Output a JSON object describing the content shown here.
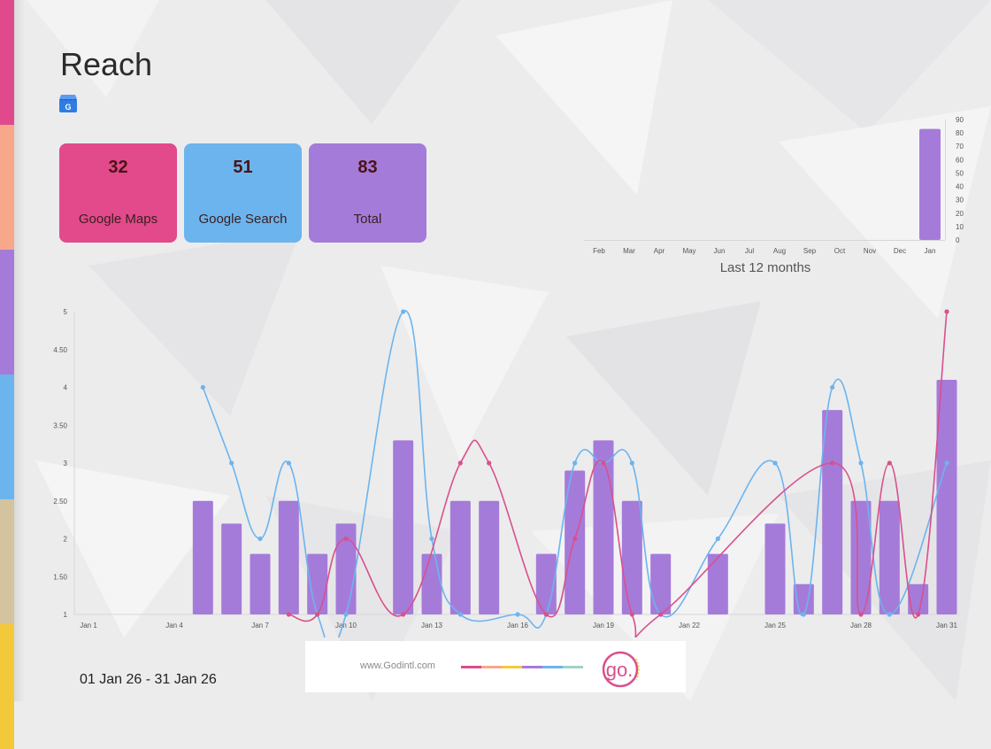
{
  "page": {
    "title": "Reach",
    "date_range": "01 Jan 26  -  31 Jan 26",
    "footer_url": "www.Godintl.com",
    "logo_text": "go."
  },
  "strip_colors": [
    "#e04a8c",
    "#f8a88a",
    "#a57bd9",
    "#6cb4ee",
    "#d4c39f",
    "#f3c93a"
  ],
  "cards": [
    {
      "value": "32",
      "label": "Google Maps",
      "color": "#e24a8b"
    },
    {
      "value": "51",
      "label": "Google Search",
      "color": "#6cb4ee"
    },
    {
      "value": "83",
      "label": "Total",
      "color": "#a57bd9"
    }
  ],
  "chart_data": [
    {
      "type": "bar",
      "title": "Last 12 months",
      "categories": [
        "Feb",
        "Mar",
        "Apr",
        "May",
        "Jun",
        "Jul",
        "Aug",
        "Sep",
        "Oct",
        "Nov",
        "Dec",
        "Jan"
      ],
      "values": [
        0,
        0,
        0,
        0,
        0,
        0,
        0,
        0,
        0,
        0,
        0,
        83
      ],
      "ylim": [
        0,
        90
      ],
      "yticks": [
        "0",
        "10",
        "20",
        "30",
        "40",
        "50",
        "60",
        "70",
        "80",
        "90"
      ],
      "axis_position": "right",
      "color": "#a57bd9"
    },
    {
      "type": "bar+line",
      "days": 31,
      "xtick_labels": [
        "Jan 1",
        "Jan 4",
        "Jan 7",
        "Jan 10",
        "Jan 13",
        "Jan 16",
        "Jan 19",
        "Jan 22",
        "Jan 25",
        "Jan 28",
        "Jan 31"
      ],
      "ytick_labels": [
        "1",
        "1.50",
        "2",
        "2.50",
        "3",
        "3.50",
        "4",
        "4.50",
        "5"
      ],
      "ylim": [
        1,
        5
      ],
      "bars": {
        "color": "#a57bd9",
        "values": [
          null,
          null,
          null,
          null,
          2.5,
          2.2,
          1.8,
          2.5,
          1.8,
          2.2,
          null,
          3.3,
          1.8,
          2.5,
          2.5,
          null,
          1.8,
          2.9,
          3.3,
          2.5,
          1.8,
          null,
          1.8,
          null,
          2.2,
          1.4,
          3.7,
          2.5,
          2.5,
          1.4,
          4.1
        ]
      },
      "series": [
        {
          "color": "#6cb4ee",
          "values": [
            null,
            null,
            null,
            null,
            4,
            3,
            2,
            3,
            1,
            1,
            null,
            5,
            2,
            1,
            null,
            1,
            1,
            3,
            3,
            3,
            1,
            null,
            2,
            null,
            3,
            1,
            4,
            3,
            1,
            null,
            3
          ]
        },
        {
          "color": "#d9508c",
          "values": [
            null,
            null,
            null,
            null,
            null,
            null,
            null,
            1,
            1,
            2,
            null,
            1,
            null,
            3,
            3,
            null,
            1,
            2,
            3,
            1,
            1,
            null,
            null,
            null,
            null,
            null,
            3,
            1,
            3,
            1,
            5
          ]
        }
      ]
    }
  ]
}
